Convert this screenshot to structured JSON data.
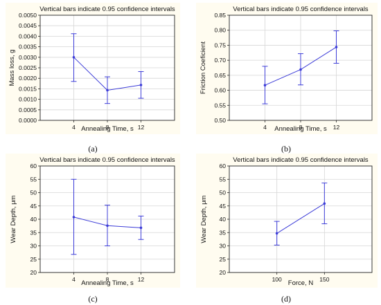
{
  "chart_data": [
    {
      "type": "line",
      "title": "Vertical bars indicate 0.95 confidence intervals",
      "xlabel": "Annealing Time, s",
      "ylabel": "Mass loss, g",
      "x": [
        4,
        8,
        12
      ],
      "xticks": [
        "4",
        "8",
        "12"
      ],
      "xlim": [
        0,
        16
      ],
      "values": [
        0.003,
        0.00143,
        0.00168
      ],
      "lower": [
        0.00185,
        0.0008,
        0.00105
      ],
      "upper": [
        0.00412,
        0.00207,
        0.00232
      ],
      "ylim": [
        0,
        0.005
      ],
      "yticks": [
        "0.0000",
        "0.0005",
        "0.0010",
        "0.0015",
        "0.0020",
        "0.0025",
        "0.0030",
        "0.0035",
        "0.0040",
        "0.0045",
        "0.0050"
      ],
      "grid": true,
      "caption": "(a)"
    },
    {
      "type": "line",
      "title": "Vertical bars indicate 0.95 confidence intervals",
      "xlabel": "Annealing Time, s",
      "ylabel": "Friction Coeficient",
      "x": [
        4,
        8,
        12
      ],
      "xticks": [
        "4",
        "8",
        "12"
      ],
      "xlim": [
        0,
        16
      ],
      "values": [
        0.617,
        0.669,
        0.744
      ],
      "lower": [
        0.555,
        0.618,
        0.69
      ],
      "upper": [
        0.68,
        0.722,
        0.798
      ],
      "ylim": [
        0.5,
        0.85
      ],
      "yticks": [
        "0.50",
        "0.55",
        "0.60",
        "0.65",
        "0.70",
        "0.75",
        "0.80",
        "0.85"
      ],
      "grid": true,
      "caption": "(b)"
    },
    {
      "type": "line",
      "title": "Vertical bars indicate 0.95 confidence intervals",
      "xlabel": "Annealing Time, s",
      "ylabel": "Wear Depth, μm",
      "x": [
        4,
        8,
        12
      ],
      "xticks": [
        "4",
        "8",
        "12"
      ],
      "xlim": [
        0,
        16
      ],
      "values": [
        40.8,
        37.6,
        36.8
      ],
      "lower": [
        26.8,
        30.0,
        32.4
      ],
      "upper": [
        55.0,
        45.3,
        41.2
      ],
      "ylim": [
        20,
        60
      ],
      "yticks": [
        "20",
        "25",
        "30",
        "35",
        "40",
        "45",
        "50",
        "55",
        "60"
      ],
      "grid": true,
      "caption": "(c)"
    },
    {
      "type": "line",
      "title": "Vertical bars indicate 0.95 confidence intervals",
      "xlabel": "Force, N",
      "ylabel": "Wear Depth, μm",
      "x": [
        100,
        150
      ],
      "xticks": [
        "100",
        "150"
      ],
      "xlim": [
        50,
        200
      ],
      "values": [
        34.7,
        45.9
      ],
      "lower": [
        30.3,
        38.3
      ],
      "upper": [
        39.2,
        53.6
      ],
      "ylim": [
        20,
        60
      ],
      "yticks": [
        "20",
        "25",
        "30",
        "35",
        "40",
        "45",
        "50",
        "55",
        "60"
      ],
      "grid": true,
      "caption": "(d)"
    }
  ],
  "colors": {
    "series": "#3c3cd8",
    "grid": "#d6d6d6",
    "panel_bg": "#fffcf0",
    "plot_bg": "#ffffff"
  }
}
